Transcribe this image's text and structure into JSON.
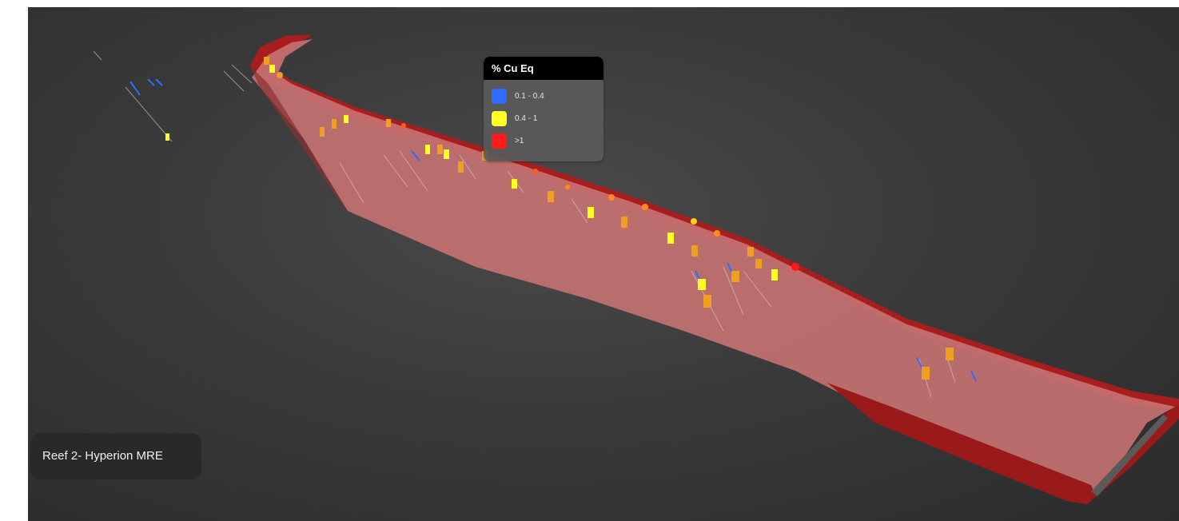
{
  "legend": {
    "title": "% Cu Eq",
    "items": [
      {
        "label": "0.1 - 0.4",
        "color": "#2f6bff"
      },
      {
        "label": "0.4 - 1",
        "color": "#ffff22"
      },
      {
        "label": ">1",
        "color": "#ff1a1a"
      }
    ]
  },
  "scene": {
    "title": "Reef 2- Hyperion MRE",
    "background_color": "#3a3a3a",
    "surface_color": "#c87272",
    "edge_color": "#b01c1c"
  }
}
